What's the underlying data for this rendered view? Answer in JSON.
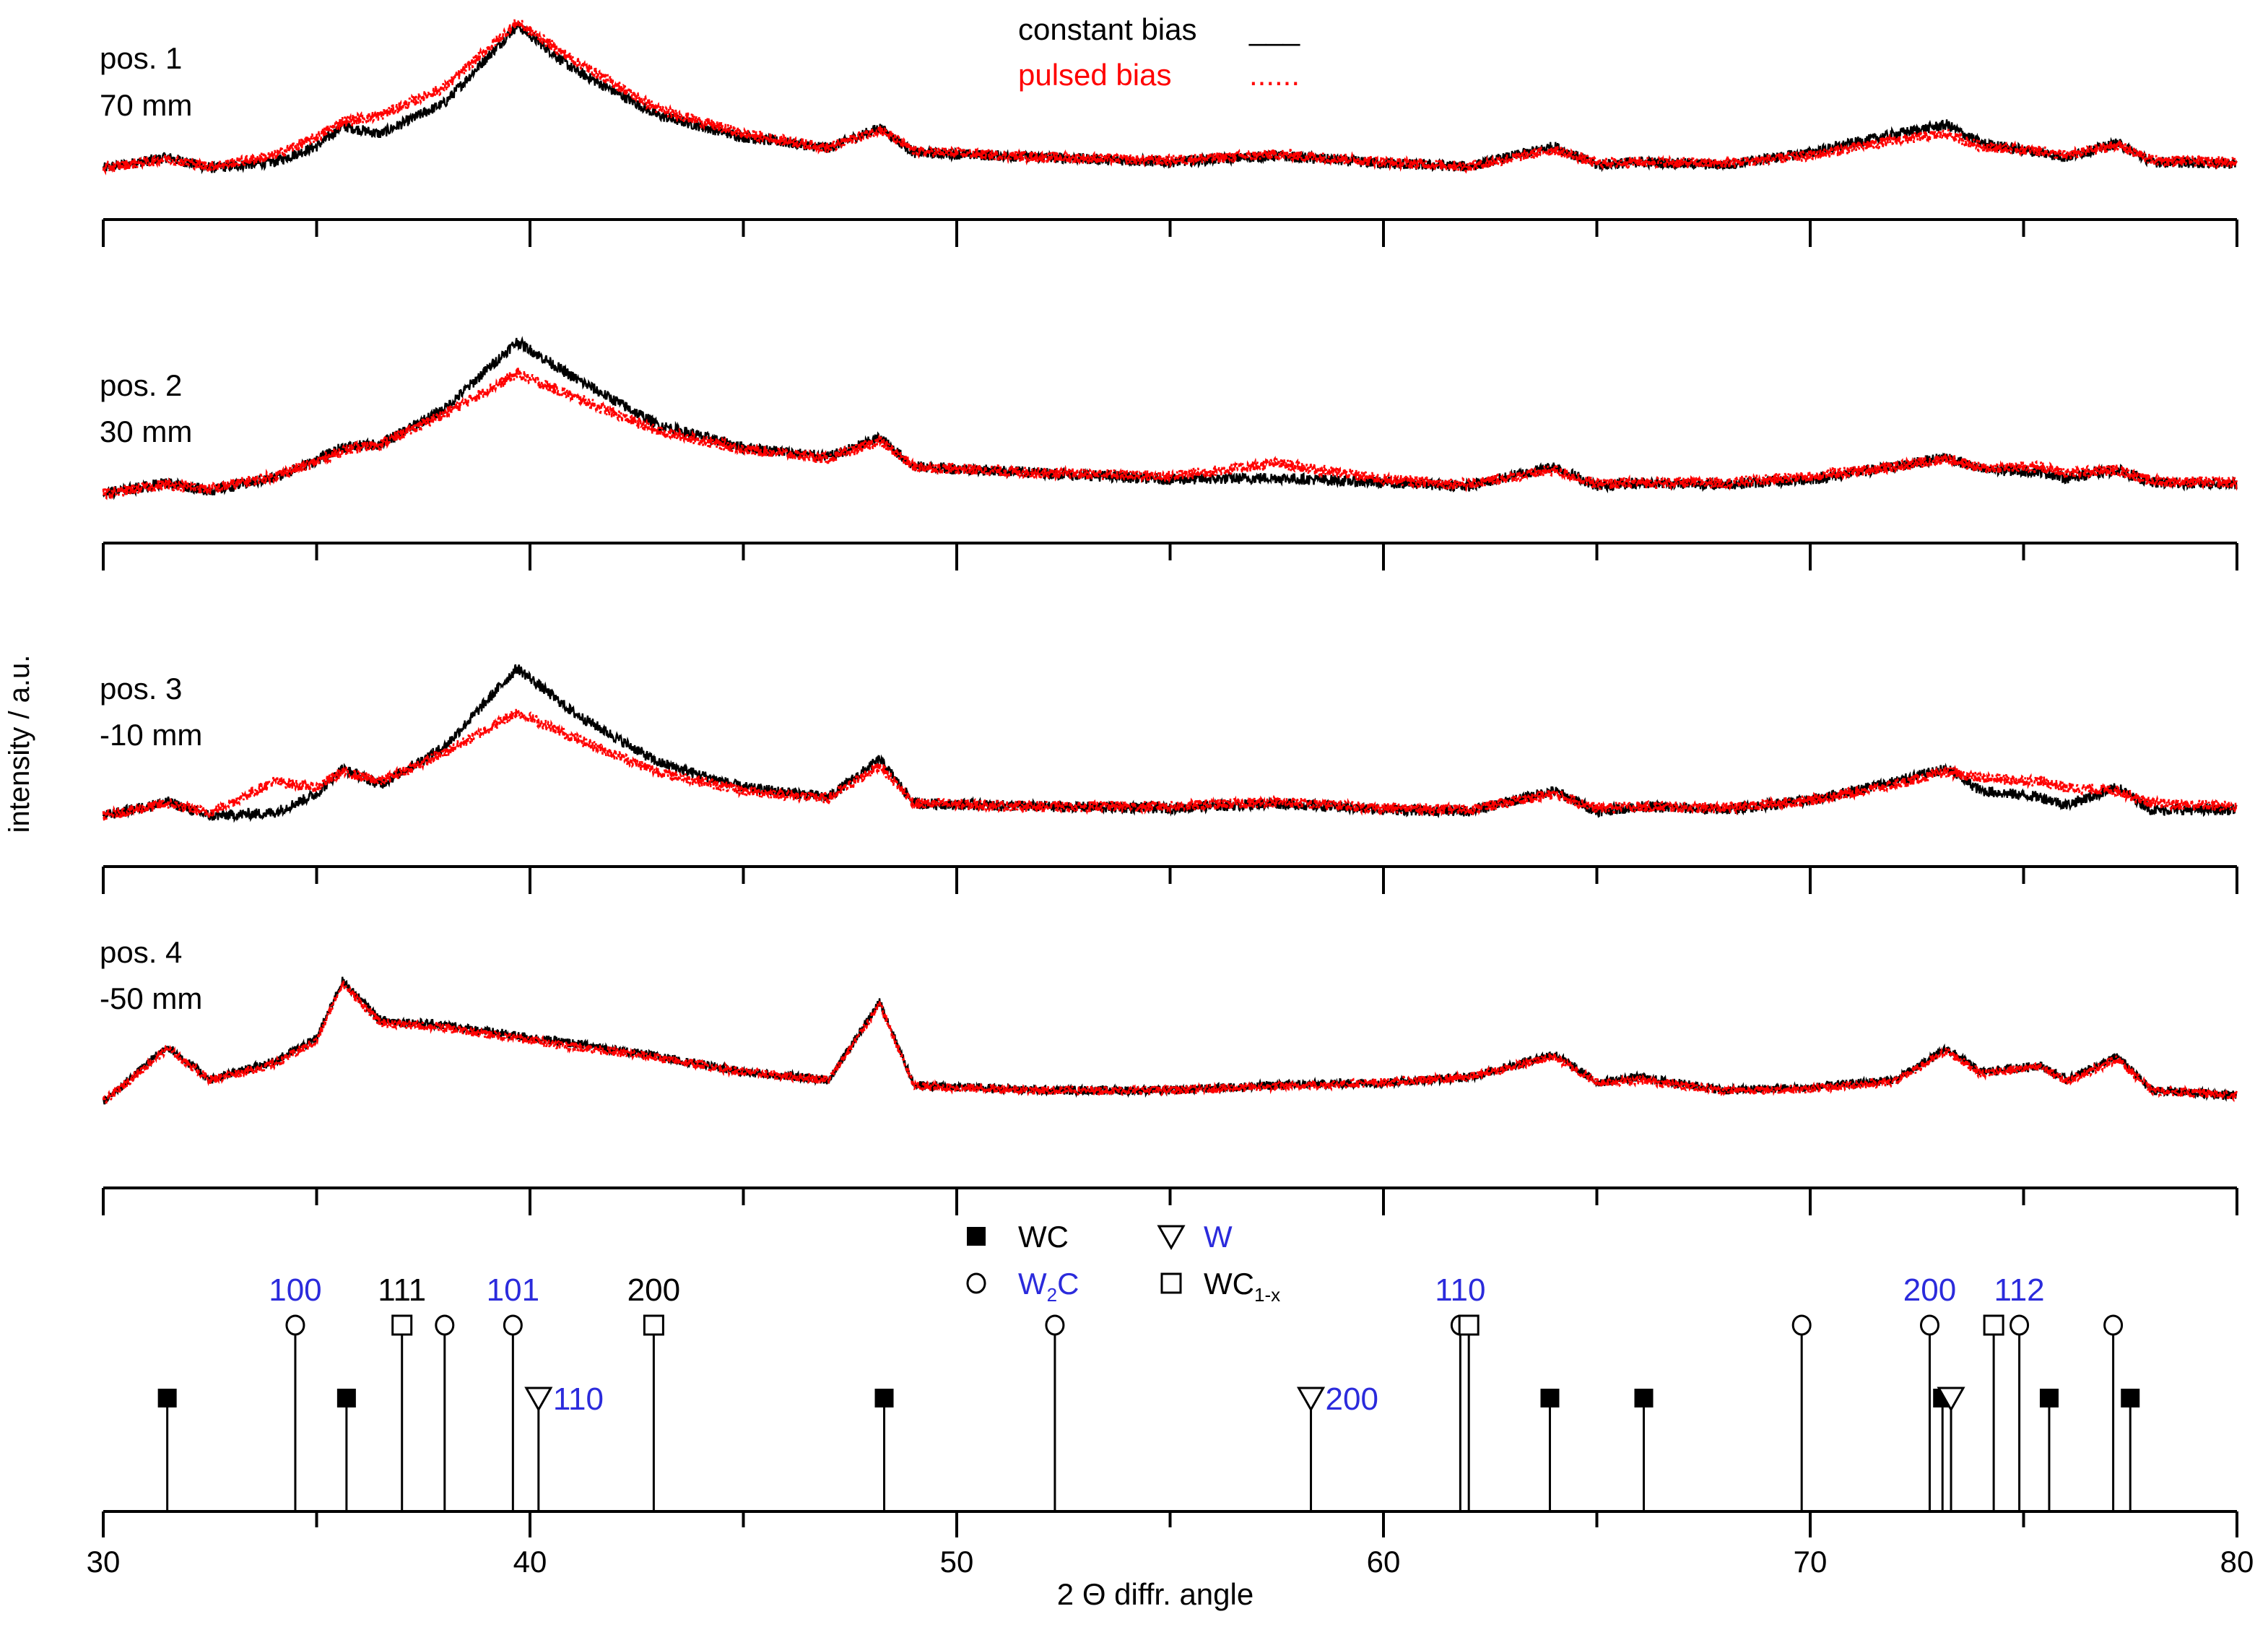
{
  "chart_data": {
    "type": "line",
    "subtype": "stacked XRD diffractograms with reference stick pattern",
    "xlabel": "2 Θ diffr. angle",
    "ylabel": "intensity / a.u.",
    "xlim": [
      30,
      80
    ],
    "x_ticks_major": [
      30,
      40,
      50,
      60,
      70,
      80
    ],
    "x_tick_labels": [
      "30",
      "40",
      "50",
      "60",
      "70",
      "80"
    ],
    "legend": {
      "placement": "top-center",
      "entries": [
        {
          "label": "constant bias",
          "color": "#000000",
          "marker": "___"
        },
        {
          "label": "pulsed bias",
          "color": "#ff0000",
          "marker": "......"
        }
      ]
    },
    "panels": [
      {
        "label": "pos. 1",
        "sublabel": "70 mm",
        "series": [
          {
            "name": "constant bias",
            "color": "#000000",
            "x": [
              30,
              31.5,
              32.5,
              34,
              35,
              35.6,
              36.5,
              38,
              39.7,
              41,
              43,
              45,
              47,
              48.2,
              49,
              52,
              55,
              57.5,
              60,
              62,
              64,
              65,
              66,
              68,
              70,
              72,
              73.2,
              74,
              75.4,
              76,
              77.2,
              78,
              80
            ],
            "y": [
              0.08,
              0.15,
              0.08,
              0.12,
              0.22,
              0.35,
              0.3,
              0.5,
              1.0,
              0.72,
              0.42,
              0.28,
              0.21,
              0.34,
              0.18,
              0.15,
              0.12,
              0.16,
              0.11,
              0.09,
              0.22,
              0.1,
              0.12,
              0.1,
              0.18,
              0.3,
              0.36,
              0.24,
              0.18,
              0.15,
              0.24,
              0.12,
              0.11
            ]
          },
          {
            "name": "pulsed bias",
            "color": "#ff0000",
            "x": [
              30,
              31.5,
              32.5,
              34,
              35,
              35.6,
              36.5,
              38,
              39.7,
              41,
              43,
              45,
              47,
              48.2,
              49,
              52,
              55,
              57.5,
              60,
              62,
              64,
              65,
              66,
              68,
              70,
              72,
              73.2,
              74,
              75.4,
              76,
              77.2,
              78,
              80
            ],
            "y": [
              0.08,
              0.14,
              0.09,
              0.16,
              0.28,
              0.38,
              0.42,
              0.6,
              1.02,
              0.78,
              0.46,
              0.3,
              0.21,
              0.33,
              0.19,
              0.15,
              0.13,
              0.17,
              0.12,
              0.09,
              0.2,
              0.11,
              0.12,
              0.11,
              0.16,
              0.26,
              0.3,
              0.22,
              0.19,
              0.16,
              0.23,
              0.13,
              0.12
            ]
          }
        ]
      },
      {
        "label": "pos. 2",
        "sublabel": "30 mm",
        "series": [
          {
            "name": "constant bias",
            "color": "#000000",
            "x": [
              30,
              31.5,
              32.5,
              34,
              35,
              35.6,
              36.5,
              38,
              39.7,
              41,
              43,
              45,
              47,
              48.2,
              49,
              52,
              55,
              57.5,
              60,
              62,
              64,
              65,
              66,
              68,
              70,
              72,
              73.2,
              74,
              75.4,
              76,
              77.2,
              78,
              80
            ],
            "y": [
              0.05,
              0.12,
              0.07,
              0.15,
              0.26,
              0.34,
              0.36,
              0.58,
              1.0,
              0.78,
              0.48,
              0.34,
              0.28,
              0.4,
              0.22,
              0.18,
              0.14,
              0.15,
              0.12,
              0.1,
              0.22,
              0.1,
              0.12,
              0.11,
              0.14,
              0.22,
              0.28,
              0.2,
              0.19,
              0.15,
              0.2,
              0.12,
              0.11
            ]
          },
          {
            "name": "pulsed bias",
            "color": "#ff0000",
            "x": [
              30,
              31.5,
              32.5,
              34,
              35,
              35.6,
              36.5,
              38,
              39.7,
              41,
              43,
              45,
              47,
              48.2,
              49,
              52,
              55,
              57.5,
              60,
              62,
              64,
              65,
              66,
              68,
              70,
              72,
              73.2,
              74,
              75.4,
              76,
              77.2,
              78,
              80
            ],
            "y": [
              0.05,
              0.11,
              0.08,
              0.16,
              0.25,
              0.32,
              0.36,
              0.55,
              0.8,
              0.66,
              0.44,
              0.33,
              0.27,
              0.38,
              0.22,
              0.18,
              0.16,
              0.24,
              0.14,
              0.11,
              0.2,
              0.11,
              0.12,
              0.12,
              0.16,
              0.22,
              0.27,
              0.21,
              0.22,
              0.18,
              0.2,
              0.13,
              0.12
            ]
          }
        ]
      },
      {
        "label": "pos. 3",
        "sublabel": "-10 mm",
        "series": [
          {
            "name": "constant bias",
            "color": "#000000",
            "x": [
              30,
              31.5,
              32.5,
              34,
              35,
              35.6,
              36.5,
              38,
              39.7,
              41,
              43,
              45,
              47,
              48.2,
              49,
              52,
              55,
              57.5,
              60,
              62,
              64,
              65,
              66,
              68,
              70,
              72,
              73.2,
              74,
              75.4,
              76,
              77.2,
              78,
              80
            ],
            "y": [
              0.06,
              0.15,
              0.06,
              0.08,
              0.2,
              0.36,
              0.26,
              0.5,
              1.0,
              0.72,
              0.4,
              0.24,
              0.18,
              0.42,
              0.14,
              0.12,
              0.11,
              0.14,
              0.1,
              0.09,
              0.22,
              0.09,
              0.12,
              0.1,
              0.16,
              0.28,
              0.36,
              0.22,
              0.18,
              0.13,
              0.24,
              0.1,
              0.1
            ]
          },
          {
            "name": "pulsed bias",
            "color": "#ff0000",
            "x": [
              30,
              31.5,
              32.5,
              34,
              35,
              35.6,
              36.5,
              38,
              39.7,
              41,
              43,
              45,
              47,
              48.2,
              49,
              52,
              55,
              57.5,
              60,
              62,
              64,
              65,
              66,
              68,
              70,
              72,
              73.2,
              74,
              75.4,
              76,
              77.2,
              78,
              80
            ],
            "y": [
              0.06,
              0.14,
              0.08,
              0.28,
              0.24,
              0.34,
              0.28,
              0.46,
              0.72,
              0.56,
              0.34,
              0.22,
              0.17,
              0.38,
              0.14,
              0.12,
              0.12,
              0.15,
              0.11,
              0.1,
              0.2,
              0.11,
              0.12,
              0.11,
              0.16,
              0.26,
              0.34,
              0.3,
              0.28,
              0.24,
              0.22,
              0.14,
              0.12
            ]
          }
        ]
      },
      {
        "label": "pos. 4",
        "sublabel": "-50 mm",
        "series": [
          {
            "name": "constant bias",
            "color": "#000000",
            "x": [
              30,
              31.5,
              32.5,
              34,
              35,
              35.6,
              36.5,
              38,
              39.7,
              41,
              43,
              45,
              47,
              48.2,
              49,
              52,
              55,
              57.5,
              60,
              62,
              64,
              65,
              66,
              68,
              70,
              72,
              73.2,
              74,
              75.4,
              76,
              77.2,
              78,
              80
            ],
            "y": [
              0.05,
              0.48,
              0.22,
              0.36,
              0.54,
              0.98,
              0.68,
              0.64,
              0.56,
              0.5,
              0.4,
              0.28,
              0.22,
              0.82,
              0.18,
              0.14,
              0.14,
              0.18,
              0.2,
              0.24,
              0.42,
              0.2,
              0.24,
              0.14,
              0.16,
              0.22,
              0.46,
              0.28,
              0.33,
              0.22,
              0.4,
              0.14,
              0.1
            ]
          },
          {
            "name": "pulsed bias",
            "color": "#ff0000",
            "x": [
              30,
              31.5,
              32.5,
              34,
              35,
              35.6,
              36.5,
              38,
              39.7,
              41,
              43,
              45,
              47,
              48.2,
              49,
              52,
              55,
              57.5,
              60,
              62,
              64,
              65,
              66,
              68,
              70,
              72,
              73.2,
              74,
              75.4,
              76,
              77.2,
              78,
              80
            ],
            "y": [
              0.05,
              0.46,
              0.22,
              0.34,
              0.52,
              0.96,
              0.66,
              0.62,
              0.54,
              0.48,
              0.39,
              0.28,
              0.22,
              0.8,
              0.17,
              0.14,
              0.14,
              0.17,
              0.2,
              0.24,
              0.4,
              0.2,
              0.22,
              0.14,
              0.15,
              0.21,
              0.44,
              0.27,
              0.32,
              0.21,
              0.38,
              0.14,
              0.1
            ]
          }
        ]
      }
    ],
    "reference_phases": {
      "legend": [
        {
          "name": "WC",
          "marker": "filled-square",
          "color": "#000000"
        },
        {
          "name": "W",
          "marker": "open-triangle-down",
          "color": "#2b2bdc"
        },
        {
          "name": "W2C",
          "marker": "open-circle",
          "color": "#2b2bdc",
          "display": {
            "main": "W",
            "sub": "2",
            "tail": "C"
          }
        },
        {
          "name": "WC1-x",
          "marker": "open-square",
          "color": "#000000",
          "display": {
            "main": "WC",
            "sub": "1-x",
            "tail": ""
          }
        }
      ],
      "sticks": [
        {
          "phase": "WC",
          "x": 31.5,
          "height": "low"
        },
        {
          "phase": "WC",
          "x": 35.7,
          "height": "low"
        },
        {
          "phase": "WC",
          "x": 48.3,
          "height": "low"
        },
        {
          "phase": "WC",
          "x": 63.9,
          "height": "low"
        },
        {
          "phase": "WC",
          "x": 66.1,
          "height": "low"
        },
        {
          "phase": "WC",
          "x": 73.1,
          "height": "low"
        },
        {
          "phase": "WC",
          "x": 75.6,
          "height": "low"
        },
        {
          "phase": "WC",
          "x": 77.5,
          "height": "low"
        },
        {
          "phase": "W2C",
          "x": 34.5,
          "height": "high",
          "hkl": "100",
          "hkl_color": "#2b2bdc"
        },
        {
          "phase": "W2C",
          "x": 38.0,
          "height": "high"
        },
        {
          "phase": "W2C",
          "x": 39.6,
          "height": "high",
          "hkl": "101",
          "hkl_color": "#2b2bdc"
        },
        {
          "phase": "W2C",
          "x": 52.3,
          "height": "high"
        },
        {
          "phase": "W2C",
          "x": 61.8,
          "height": "high",
          "hkl": "110",
          "hkl_color": "#2b2bdc"
        },
        {
          "phase": "W2C",
          "x": 69.8,
          "height": "high"
        },
        {
          "phase": "W2C",
          "x": 72.8,
          "height": "high",
          "hkl": "200",
          "hkl_color": "#2b2bdc"
        },
        {
          "phase": "W2C",
          "x": 74.9,
          "height": "high",
          "hkl": "112",
          "hkl_color": "#2b2bdc"
        },
        {
          "phase": "W2C",
          "x": 77.1,
          "height": "high"
        },
        {
          "phase": "WC1-x",
          "x": 37.0,
          "height": "high",
          "hkl": "111",
          "hkl_color": "#000000"
        },
        {
          "phase": "WC1-x",
          "x": 42.9,
          "height": "high",
          "hkl": "200",
          "hkl_color": "#000000"
        },
        {
          "phase": "WC1-x",
          "x": 62.0,
          "height": "high"
        },
        {
          "phase": "WC1-x",
          "x": 74.3,
          "height": "high"
        },
        {
          "phase": "W",
          "x": 40.2,
          "height": "low",
          "hkl": "110",
          "hkl_color": "#2b2bdc"
        },
        {
          "phase": "W",
          "x": 58.3,
          "height": "low",
          "hkl": "200",
          "hkl_color": "#2b2bdc"
        },
        {
          "phase": "W",
          "x": 73.3,
          "height": "low"
        }
      ]
    }
  }
}
